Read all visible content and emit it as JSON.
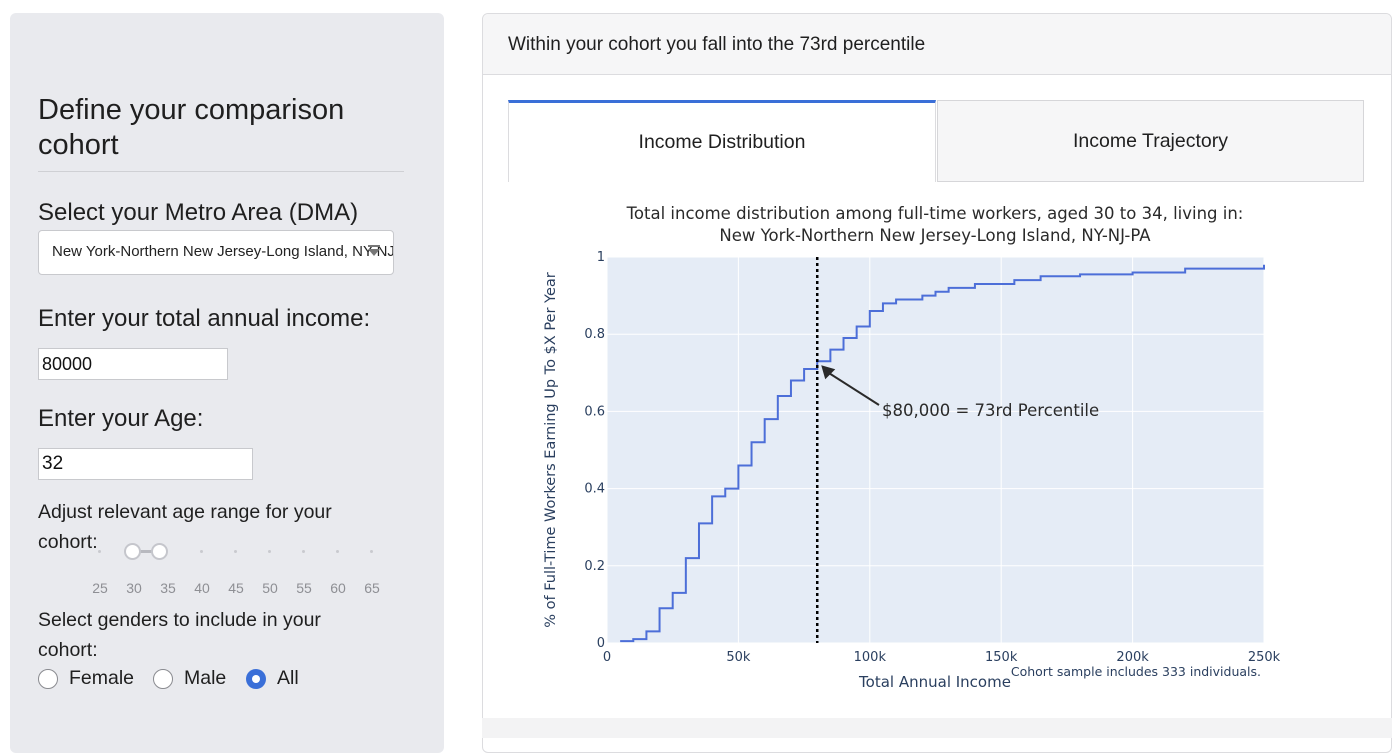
{
  "sidebar": {
    "title": "Define your comparison cohort",
    "metro_label": "Select your Metro Area (DMA)",
    "metro_value": "New York-Northern New Jersey-Long Island, NY-NJ-PA",
    "income_label": "Enter your total annual income:",
    "income_value": "80000",
    "age_label": "Enter your Age:",
    "age_value": "32",
    "age_range_label": "Adjust relevant age range for your cohort:",
    "age_ticks": [
      "25",
      "30",
      "35",
      "40",
      "45",
      "50",
      "55",
      "60",
      "65"
    ],
    "age_range_selected": [
      30,
      35
    ],
    "gender_label": "Select genders to include in your cohort:",
    "gender_options": [
      "Female",
      "Male",
      "All"
    ],
    "gender_selected": "All"
  },
  "main": {
    "header": "Within your cohort you fall into the 73rd percentile",
    "tabs": [
      {
        "label": "Income Distribution",
        "active": true
      },
      {
        "label": "Income Trajectory",
        "active": false
      }
    ]
  },
  "colors": {
    "accent": "#3a6fd8",
    "line": "#4c6ed8",
    "plot_bg": "#e5ecf6"
  },
  "chart_data": {
    "type": "line",
    "title_line1": "Total income distribution among full-time workers, aged 30 to 34, living in:",
    "title_line2": "New York-Northern New Jersey-Long Island, NY-NJ-PA",
    "xlabel": "Total Annual Income",
    "ylabel": "% of Full-Time Workers Earning Up To $X Per Year",
    "xlim": [
      0,
      250000
    ],
    "ylim": [
      0,
      1
    ],
    "x_ticks": [
      {
        "v": 0,
        "label": "0"
      },
      {
        "v": 50000,
        "label": "50k"
      },
      {
        "v": 100000,
        "label": "100k"
      },
      {
        "v": 150000,
        "label": "150k"
      },
      {
        "v": 200000,
        "label": "200k"
      },
      {
        "v": 250000,
        "label": "250k"
      }
    ],
    "y_ticks": [
      {
        "v": 0,
        "label": "0"
      },
      {
        "v": 0.2,
        "label": "0.2"
      },
      {
        "v": 0.4,
        "label": "0.4"
      },
      {
        "v": 0.6,
        "label": "0.6"
      },
      {
        "v": 0.8,
        "label": "0.8"
      },
      {
        "v": 1,
        "label": "1"
      }
    ],
    "series": [
      {
        "values": [
          [
            5000,
            0.005
          ],
          [
            10000,
            0.01
          ],
          [
            15000,
            0.03
          ],
          [
            20000,
            0.09
          ],
          [
            25000,
            0.13
          ],
          [
            30000,
            0.22
          ],
          [
            35000,
            0.31
          ],
          [
            40000,
            0.38
          ],
          [
            45000,
            0.4
          ],
          [
            50000,
            0.46
          ],
          [
            55000,
            0.52
          ],
          [
            60000,
            0.58
          ],
          [
            65000,
            0.64
          ],
          [
            70000,
            0.68
          ],
          [
            75000,
            0.71
          ],
          [
            80000,
            0.73
          ],
          [
            85000,
            0.76
          ],
          [
            90000,
            0.79
          ],
          [
            95000,
            0.82
          ],
          [
            100000,
            0.86
          ],
          [
            105000,
            0.88
          ],
          [
            110000,
            0.89
          ],
          [
            120000,
            0.9
          ],
          [
            125000,
            0.91
          ],
          [
            130000,
            0.92
          ],
          [
            140000,
            0.93
          ],
          [
            150000,
            0.93
          ],
          [
            155000,
            0.94
          ],
          [
            165000,
            0.95
          ],
          [
            180000,
            0.955
          ],
          [
            200000,
            0.96
          ],
          [
            220000,
            0.97
          ],
          [
            250000,
            0.98
          ]
        ]
      }
    ],
    "marker": {
      "x": 80000,
      "y": 0.73
    },
    "annotation": "$80,000 = 73rd Percentile",
    "note": "Cohort sample includes 333 individuals."
  }
}
